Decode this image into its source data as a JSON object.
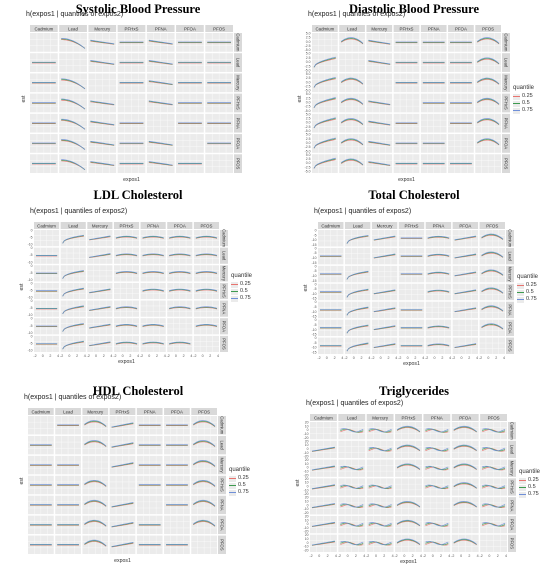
{
  "figure": {
    "ggtitle": "h(expos1 | quantiles of expos2)",
    "xlabel": "expos1",
    "ylabel": "est",
    "legend_title": "quantile",
    "legend_entries": [
      "0.25",
      "0.5",
      "0.75"
    ],
    "colors": {
      "0.25": "#e8746f",
      "0.5": "#3d9a4f",
      "0.75": "#6f8fd8"
    },
    "columns": [
      "Cadmium",
      "Lead",
      "Mercury",
      "PFHxS",
      "PFNA",
      "PFOA",
      "PFOS"
    ],
    "rows": [
      "Cadmium",
      "Lead",
      "Mercury",
      "PFHxS",
      "PFNA",
      "PFOA",
      "PFOS"
    ]
  },
  "chart_data": [
    {
      "type": "line",
      "title": "Systolic Blood Pressure",
      "show_legend": true,
      "xlim": [
        -2,
        4
      ],
      "ylim": [
        -4,
        3
      ],
      "shapes": {
        "Lead": "down",
        "Mercury": "slope_down",
        "PFNA": "slope_down",
        "PFOA": "flat",
        "PFOS": "flat",
        "Cadmium": "flat",
        "PFHxS": "flat"
      }
    },
    {
      "type": "line",
      "title": "Diastolic Blood Pressure",
      "show_legend": true,
      "ytick_labels": [
        "5.0",
        "2.5",
        "0.0",
        "-2.5",
        "-5.0"
      ],
      "xlim": [
        -2,
        4
      ],
      "ylim": [
        -5,
        5
      ],
      "shapes": {
        "Cadmium": "up",
        "Lead": "hump",
        "Mercury": "slope_down",
        "PFHxS": "flat",
        "PFNA": "flat",
        "PFOA": "flat",
        "PFOS": "hump"
      }
    },
    {
      "type": "line",
      "title": "LDL Cholesterol",
      "show_legend": true,
      "ytick_labels": [
        "0",
        "-5",
        "-10"
      ],
      "xtick_labels": [
        "-2",
        "0",
        "2",
        "4",
        "-2",
        "0",
        "2",
        "4",
        "-2",
        "0",
        "2",
        "4",
        "-2",
        "0",
        "2",
        "4",
        "-2",
        "0",
        "2",
        "4",
        "-2",
        "0",
        "2",
        "4",
        "-2",
        "0",
        "2",
        "4"
      ],
      "xlim": [
        -2,
        4
      ],
      "ylim": [
        -12,
        3
      ],
      "shapes": {
        "Cadmium": "flat",
        "Lead": "rise_steep",
        "Mercury": "slope_up",
        "PFHxS": "hump_soft",
        "PFNA": "hump_soft",
        "PFOA": "hump_soft",
        "PFOS": "hump_soft"
      }
    },
    {
      "type": "line",
      "title": "Total Cholesterol",
      "show_legend": true,
      "ytick_labels": [
        "0",
        "-5",
        "-10",
        "-15"
      ],
      "xtick_labels": [
        "-2",
        "0",
        "2",
        "4",
        "-2",
        "0",
        "2",
        "4",
        "-2",
        "0",
        "2",
        "4",
        "-2",
        "0",
        "2",
        "4",
        "-2",
        "0",
        "2",
        "4",
        "-2",
        "0",
        "2",
        "4",
        "-2",
        "0",
        "2",
        "4"
      ],
      "xlim": [
        -2,
        4
      ],
      "ylim": [
        -15,
        3
      ],
      "shapes": {
        "Cadmium": "flat",
        "Lead": "rise_steep",
        "Mercury": "slope_up",
        "PFHxS": "flat",
        "PFNA": "hump_soft",
        "PFOA": "slope_up",
        "PFOS": "hump"
      }
    },
    {
      "type": "line",
      "title": "HDL Cholesterol",
      "show_legend": true,
      "xlim": [
        -2,
        4
      ],
      "ylim": [
        -4,
        3
      ],
      "shapes": {
        "Cadmium": "flat",
        "Lead": "flat",
        "Mercury": "hump",
        "PFHxS": "slope_up",
        "PFNA": "flat",
        "PFOA": "flat",
        "PFOS": "hump"
      }
    },
    {
      "type": "line",
      "title": "Triglycerides",
      "show_legend": true,
      "ytick_labels": [
        "20",
        "10",
        "0",
        "-10",
        "-20"
      ],
      "xtick_labels": [
        "-2",
        "0",
        "2",
        "4",
        "-2",
        "0",
        "2",
        "4",
        "-2",
        "0",
        "2",
        "4",
        "-2",
        "0",
        "2",
        "4",
        "-2",
        "0",
        "2",
        "4",
        "-2",
        "0",
        "2",
        "4",
        "-2",
        "0",
        "2",
        "4"
      ],
      "xlim": [
        -2,
        4
      ],
      "ylim": [
        -25,
        25
      ],
      "shapes": {
        "Cadmium": "slope_up",
        "Lead": "wave",
        "Mercury": "wave",
        "PFHxS": "hump",
        "PFNA": "wave",
        "PFOA": "hump",
        "PFOS": "wave"
      }
    }
  ]
}
